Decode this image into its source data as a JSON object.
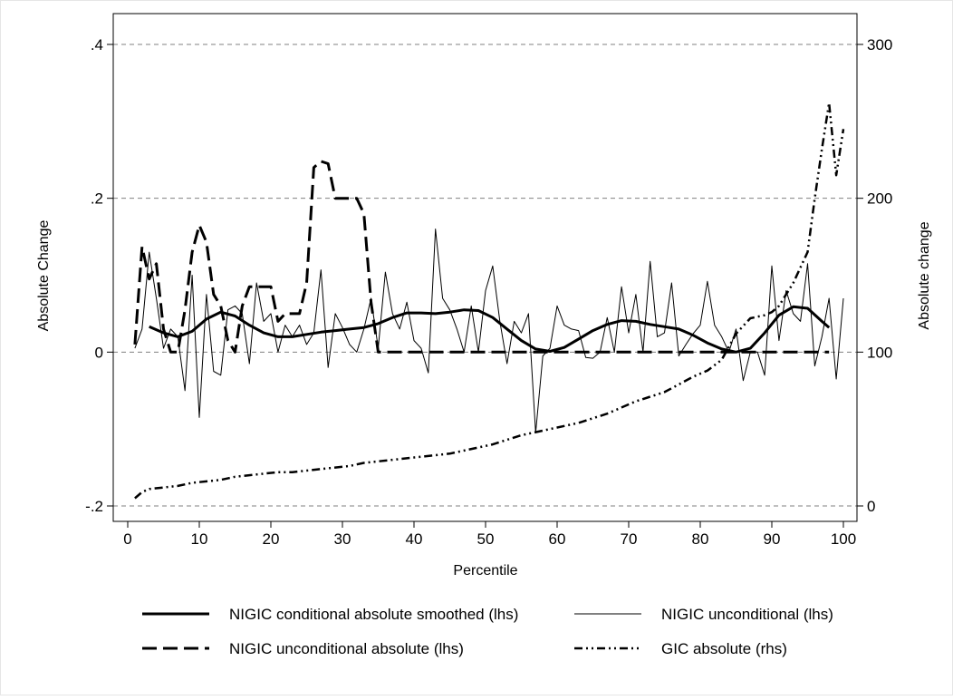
{
  "chart_data": {
    "type": "line",
    "xlabel": "Percentile",
    "ylabel_left": "Absolute Change",
    "ylabel_right": "Absolute change",
    "xlim": [
      0,
      100
    ],
    "ylim_left": [
      -0.2,
      0.4
    ],
    "ylim_right": [
      0,
      300
    ],
    "x_ticks": [
      "0",
      "10",
      "20",
      "30",
      "40",
      "50",
      "60",
      "70",
      "80",
      "90",
      "100"
    ],
    "y_left_ticks": [
      {
        "value": -0.2,
        "label": "-.2"
      },
      {
        "value": 0,
        "label": "0"
      },
      {
        "value": 0.2,
        "label": ".2"
      },
      {
        "value": 0.4,
        "label": ".4"
      }
    ],
    "y_right_ticks": [
      {
        "value": 0,
        "label": "0"
      },
      {
        "value": 100,
        "label": "100"
      },
      {
        "value": 200,
        "label": "200"
      },
      {
        "value": 300,
        "label": "300"
      }
    ],
    "grid": true,
    "legend_position": "bottom",
    "series": [
      {
        "name": "NIGIC conditional absolute smoothed (lhs)",
        "axis": "left",
        "style": "thick-solid",
        "x": [
          3,
          5,
          7,
          9,
          11,
          13,
          15,
          17,
          19,
          21,
          23,
          25,
          27,
          29,
          31,
          33,
          35,
          37,
          39,
          41,
          43,
          45,
          47,
          49,
          51,
          53,
          55,
          57,
          59,
          61,
          63,
          65,
          67,
          69,
          71,
          73,
          75,
          77,
          79,
          81,
          83,
          85,
          87,
          89,
          91,
          93,
          95,
          97,
          98
        ],
        "y": [
          0.033,
          0.025,
          0.02,
          0.027,
          0.043,
          0.052,
          0.047,
          0.035,
          0.025,
          0.02,
          0.02,
          0.023,
          0.026,
          0.028,
          0.03,
          0.032,
          0.037,
          0.045,
          0.051,
          0.051,
          0.05,
          0.052,
          0.055,
          0.054,
          0.045,
          0.03,
          0.015,
          0.004,
          0.001,
          0.006,
          0.017,
          0.028,
          0.036,
          0.041,
          0.04,
          0.036,
          0.033,
          0.03,
          0.022,
          0.012,
          0.004,
          0.0,
          0.005,
          0.025,
          0.048,
          0.059,
          0.057,
          0.04,
          0.032
        ]
      },
      {
        "name": "NIGIC unconditional (lhs)",
        "axis": "left",
        "style": "thin-solid",
        "x": [
          1,
          2,
          3,
          4,
          5,
          6,
          7,
          8,
          9,
          10,
          11,
          12,
          13,
          14,
          15,
          16,
          17,
          18,
          19,
          20,
          21,
          22,
          23,
          24,
          25,
          26,
          27,
          28,
          29,
          30,
          31,
          32,
          33,
          34,
          35,
          36,
          37,
          38,
          39,
          40,
          41,
          42,
          43,
          44,
          45,
          46,
          47,
          48,
          49,
          50,
          51,
          52,
          53,
          54,
          55,
          56,
          57,
          58,
          59,
          60,
          61,
          62,
          63,
          64,
          65,
          66,
          67,
          68,
          69,
          70,
          71,
          72,
          73,
          74,
          75,
          76,
          77,
          78,
          79,
          80,
          81,
          82,
          83,
          84,
          85,
          86,
          87,
          88,
          89,
          90,
          91,
          92,
          93,
          94,
          95,
          96,
          97,
          98,
          99,
          100
        ],
        "y": [
          0.005,
          0.03,
          0.13,
          0.07,
          0.005,
          0.03,
          0.02,
          -0.05,
          0.1,
          -0.085,
          0.075,
          -0.025,
          -0.03,
          0.055,
          0.06,
          0.05,
          -0.015,
          0.09,
          0.04,
          0.05,
          0.0,
          0.035,
          0.02,
          0.035,
          0.01,
          0.025,
          0.107,
          -0.02,
          0.05,
          0.032,
          0.01,
          0.0,
          0.03,
          0.07,
          0.005,
          0.104,
          0.05,
          0.03,
          0.065,
          0.015,
          0.005,
          -0.027,
          0.16,
          0.07,
          0.055,
          0.03,
          0.0,
          0.06,
          0.0,
          0.08,
          0.112,
          0.04,
          -0.015,
          0.04,
          0.025,
          0.05,
          -0.105,
          -0.005,
          0.005,
          0.06,
          0.035,
          0.03,
          0.028,
          -0.007,
          -0.008,
          0.0,
          0.045,
          0.0,
          0.085,
          0.025,
          0.075,
          0.0,
          0.118,
          0.02,
          0.025,
          0.09,
          -0.005,
          0.01,
          0.024,
          0.035,
          0.092,
          0.035,
          0.02,
          0.0,
          0.03,
          -0.037,
          0.0,
          0.0,
          -0.03,
          0.112,
          0.015,
          0.08,
          0.05,
          0.04,
          0.115,
          -0.018,
          0.02,
          0.07,
          -0.035,
          0.07
        ]
      },
      {
        "name": "NIGIC unconditional absolute (lhs)",
        "axis": "left",
        "style": "long-dash",
        "x": [
          1,
          2,
          3,
          4,
          5,
          6,
          7,
          8,
          9,
          10,
          11,
          12,
          13,
          14,
          15,
          16,
          17,
          18,
          19,
          20,
          21,
          22,
          23,
          24,
          25,
          26,
          27,
          28,
          29,
          30,
          31,
          32,
          33,
          34,
          35,
          36,
          37,
          38,
          39,
          40,
          41,
          42,
          43,
          44,
          45,
          46,
          47,
          48,
          49,
          50,
          51,
          52,
          53,
          54,
          55,
          56,
          57,
          58,
          59,
          60,
          61,
          62,
          63,
          64,
          65,
          66,
          67,
          68,
          69,
          70,
          71,
          72,
          73,
          74,
          75,
          76,
          77,
          78,
          79,
          80,
          81,
          82,
          83,
          84,
          85,
          86,
          87,
          88,
          89,
          90,
          91,
          92,
          93,
          94,
          95,
          96,
          97,
          98
        ],
        "y": [
          0.01,
          0.137,
          0.095,
          0.115,
          0.03,
          0.0,
          0.0,
          0.055,
          0.13,
          0.165,
          0.143,
          0.075,
          0.06,
          0.015,
          0.0,
          0.06,
          0.085,
          0.085,
          0.085,
          0.085,
          0.04,
          0.05,
          0.05,
          0.05,
          0.09,
          0.24,
          0.248,
          0.245,
          0.2,
          0.2,
          0.2,
          0.2,
          0.18,
          0.065,
          0.0,
          0.0,
          0.0,
          0.0,
          0.0,
          0.0,
          0.0,
          0.0,
          0.0,
          0.0,
          0.0,
          0.0,
          0.0,
          0.0,
          0.0,
          0.0,
          0.0,
          0.0,
          0.0,
          0.0,
          0.0,
          0.0,
          0.0,
          0.0,
          0.0,
          0.0,
          0.0,
          0.0,
          0.0,
          0.0,
          0.0,
          0.0,
          0.0,
          0.0,
          0.0,
          0.0,
          0.0,
          0.0,
          0.0,
          0.0,
          0.0,
          0.0,
          0.0,
          0.0,
          0.0,
          0.0,
          0.0,
          0.0,
          0.0,
          0.0,
          0.0,
          0.0,
          0.0,
          0.0,
          0.0,
          0.0,
          0.0,
          0.0,
          0.0,
          0.0,
          0.0,
          0.0,
          0.0,
          0.0
        ]
      },
      {
        "name": "GIC absolute (rhs)",
        "axis": "right",
        "style": "dash-dot-dot",
        "x": [
          1,
          2,
          3,
          5,
          7,
          9,
          11,
          13,
          15,
          17,
          19,
          21,
          23,
          25,
          27,
          29,
          31,
          33,
          35,
          37,
          39,
          41,
          43,
          45,
          47,
          49,
          51,
          53,
          55,
          57,
          59,
          61,
          63,
          65,
          67,
          69,
          71,
          73,
          75,
          77,
          79,
          81,
          83,
          85,
          87,
          89,
          90,
          91,
          93,
          95,
          96,
          97,
          98,
          99,
          100
        ],
        "y": [
          5,
          9,
          11,
          12,
          13,
          15,
          16,
          17,
          19,
          20,
          21,
          22,
          22,
          23,
          24,
          25,
          26,
          28,
          29,
          30,
          31,
          32,
          33,
          34,
          36,
          38,
          40,
          43,
          46,
          48,
          50,
          52,
          54,
          57,
          60,
          64,
          68,
          71,
          74,
          79,
          84,
          88,
          95,
          112,
          122,
          124,
          126,
          130,
          145,
          165,
          200,
          232,
          262,
          215,
          245
        ]
      }
    ],
    "legend": [
      {
        "label": "NIGIC conditional absolute smoothed (lhs)",
        "style": "thick-solid"
      },
      {
        "label": "NIGIC unconditional (lhs)",
        "style": "thin-solid"
      },
      {
        "label": "NIGIC unconditional absolute (lhs)",
        "style": "long-dash"
      },
      {
        "label": "GIC absolute (rhs)",
        "style": "dash-dot-dot"
      }
    ]
  }
}
